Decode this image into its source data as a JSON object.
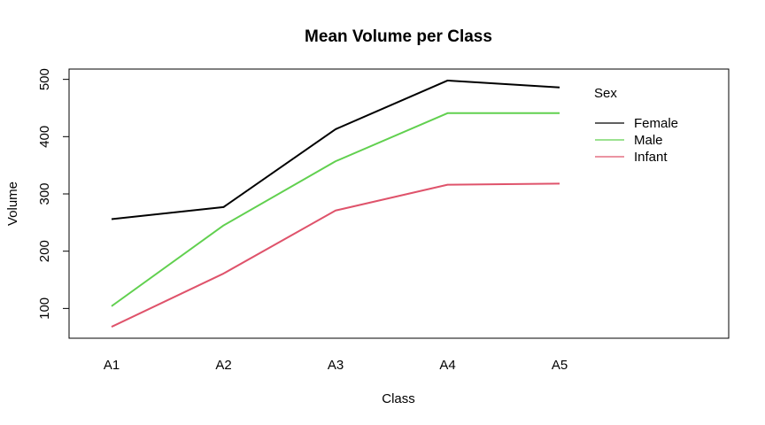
{
  "chart_data": {
    "type": "line",
    "title": "Mean Volume per Class",
    "xlabel": "Class",
    "ylabel": "Volume",
    "categories": [
      "A1",
      "A2",
      "A3",
      "A4",
      "A5"
    ],
    "yticks": [
      100,
      200,
      300,
      400,
      500
    ],
    "ylim": [
      48,
      518
    ],
    "series": [
      {
        "name": "Female",
        "color": "#000000",
        "values": [
          256,
          277,
          413,
          498,
          486
        ]
      },
      {
        "name": "Male",
        "color": "#61D04F",
        "values": [
          104,
          245,
          357,
          441,
          441
        ]
      },
      {
        "name": "Infant",
        "color": "#DF536B",
        "values": [
          68,
          161,
          271,
          316,
          318
        ]
      }
    ],
    "legend": {
      "title": "Sex",
      "position": "top-right",
      "entries": [
        "Female",
        "Male",
        "Infant"
      ]
    },
    "grid": false
  }
}
